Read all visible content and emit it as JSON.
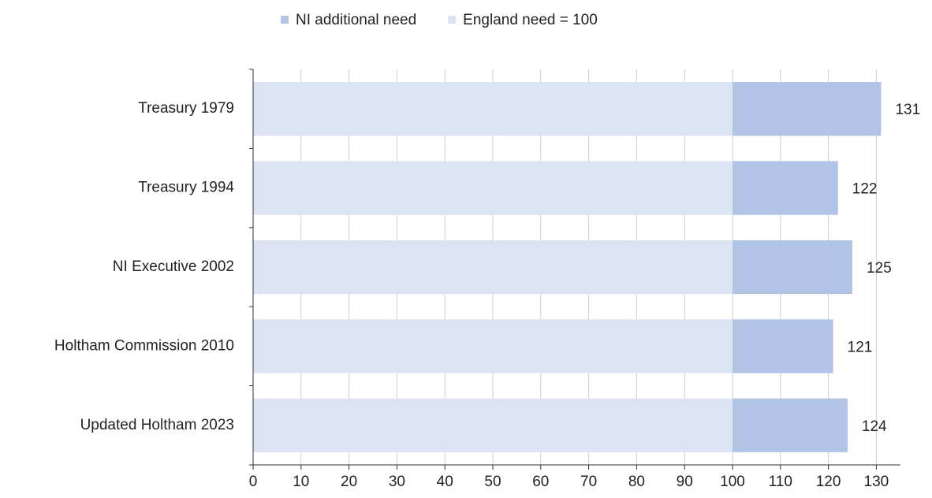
{
  "chart_data": {
    "type": "stacked-bar-horizontal",
    "categories": [
      "Treasury 1979",
      "Treasury 1994",
      "NI Executive 2002",
      "Holtham Commission 2010",
      "Updated Holtham 2023"
    ],
    "series": [
      {
        "name": "England need = 100",
        "color": "#dce3f2",
        "values": [
          100,
          100,
          100,
          100,
          100
        ]
      },
      {
        "name": "NI additional need",
        "color": "#b2c4e6",
        "values": [
          31,
          22,
          25,
          21,
          24
        ]
      }
    ],
    "totals": [
      131,
      122,
      125,
      121,
      124
    ],
    "xlim": [
      0,
      135
    ],
    "xticks": [
      0,
      10,
      20,
      30,
      40,
      50,
      60,
      70,
      80,
      90,
      100,
      110,
      120,
      130
    ],
    "grid": true
  }
}
